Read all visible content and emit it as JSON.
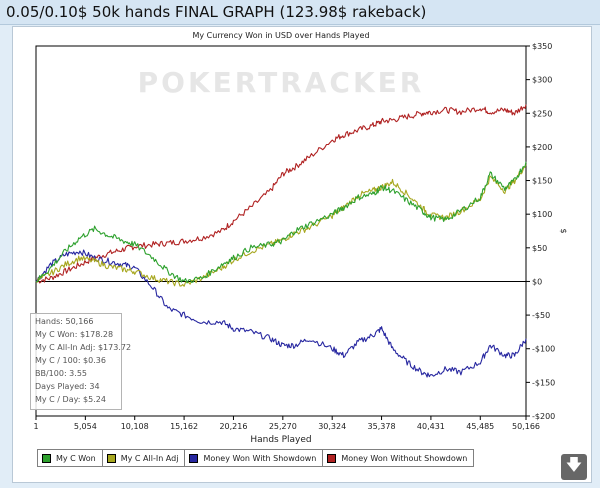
{
  "header": {
    "title": "0.05/0.10$  50k hands FINAL GRAPH (123.98$ rakeback)"
  },
  "watermark": "POKERTRACKER",
  "stats": [
    "Hands: 50,166",
    "My C Won: $178.28",
    "My C All-In Adj: $173.72",
    "My C / 100: $0.36",
    "BB/100: 3.55",
    "Days Played: 34",
    "My C / Day: $5.24"
  ],
  "download_icon": "download-arrow-icon",
  "chart_data": {
    "type": "line",
    "title": "My Currency Won in USD over Hands Played",
    "xlabel": "Hands Played",
    "ylabel": "$",
    "xlim": [
      1,
      50166
    ],
    "ylim": [
      -200,
      350
    ],
    "x_ticks": [
      1,
      5054,
      10108,
      15162,
      20216,
      25270,
      30324,
      35378,
      40431,
      45485,
      50166
    ],
    "x_tick_labels": [
      "1",
      "5,054",
      "10,108",
      "15,162",
      "20,216",
      "25,270",
      "30,324",
      "35,378",
      "40,431",
      "45,485",
      "50,166"
    ],
    "y_ticks": [
      350,
      300,
      250,
      200,
      150,
      100,
      50,
      0,
      -50,
      -100,
      -150,
      -200
    ],
    "y_tick_labels": [
      "$350",
      "$300",
      "$250",
      "$200",
      "$150",
      "$100",
      "$50",
      "$0",
      "-$50",
      "-$100",
      "-$150",
      "-$200"
    ],
    "grid": false,
    "legend_position": "bottom",
    "series": [
      {
        "name": "My C Won",
        "color": "#2ea12e",
        "x": [
          1,
          1500,
          3000,
          4500,
          6000,
          7500,
          9000,
          10108,
          12000,
          13500,
          15162,
          17000,
          19000,
          20216,
          22000,
          24000,
          25270,
          26500,
          28000,
          30324,
          31500,
          33000,
          34500,
          35378,
          36500,
          38000,
          39500,
          40431,
          42000,
          43500,
          45485,
          46500,
          48000,
          49000,
          50166
        ],
        "y": [
          0,
          20,
          45,
          65,
          78,
          68,
          60,
          55,
          35,
          15,
          0,
          5,
          25,
          35,
          50,
          55,
          60,
          75,
          85,
          100,
          110,
          125,
          130,
          140,
          135,
          120,
          105,
          95,
          92,
          105,
          125,
          160,
          138,
          150,
          178
        ]
      },
      {
        "name": "My C All-In Adj",
        "color": "#a7a71f",
        "x": [
          1,
          1500,
          3000,
          4500,
          6000,
          7500,
          9000,
          10108,
          12000,
          13500,
          15162,
          17000,
          19000,
          20216,
          22000,
          24000,
          25270,
          26500,
          28000,
          30324,
          31500,
          33000,
          34500,
          35378,
          36500,
          38000,
          39500,
          40431,
          42000,
          43500,
          45485,
          46500,
          48000,
          49000,
          50166
        ],
        "y": [
          0,
          12,
          25,
          35,
          30,
          22,
          18,
          15,
          5,
          0,
          -5,
          5,
          20,
          32,
          45,
          55,
          62,
          72,
          80,
          98,
          110,
          128,
          135,
          140,
          148,
          130,
          110,
          98,
          95,
          105,
          122,
          155,
          135,
          150,
          174
        ]
      },
      {
        "name": "Money Won With Showdown",
        "color": "#2727a0",
        "x": [
          1,
          1500,
          3000,
          4500,
          6000,
          7500,
          9000,
          10108,
          12000,
          13500,
          15162,
          17000,
          19000,
          20216,
          22000,
          24000,
          25270,
          26500,
          28000,
          30324,
          31500,
          33000,
          34500,
          35378,
          36500,
          38000,
          39500,
          40431,
          42000,
          43500,
          45485,
          46500,
          48000,
          49000,
          50166
        ],
        "y": [
          0,
          25,
          40,
          45,
          35,
          30,
          25,
          20,
          -10,
          -40,
          -50,
          -60,
          -60,
          -70,
          -75,
          -85,
          -95,
          -95,
          -85,
          -100,
          -110,
          -90,
          -80,
          -70,
          -100,
          -120,
          -135,
          -140,
          -130,
          -135,
          -120,
          -95,
          -110,
          -110,
          -85
        ]
      },
      {
        "name": "Money Won Without Showdown",
        "color": "#b02222",
        "x": [
          1,
          1500,
          3000,
          4500,
          6000,
          7500,
          9000,
          10108,
          12000,
          13500,
          15162,
          17000,
          19000,
          20216,
          22000,
          24000,
          25270,
          26500,
          28000,
          30324,
          31500,
          33000,
          34500,
          35378,
          36500,
          38000,
          39500,
          40431,
          42000,
          43500,
          45485,
          46500,
          48000,
          49000,
          50166
        ],
        "y": [
          0,
          5,
          15,
          25,
          35,
          42,
          48,
          52,
          55,
          57,
          60,
          65,
          75,
          90,
          110,
          135,
          160,
          170,
          185,
          210,
          218,
          225,
          232,
          238,
          240,
          245,
          250,
          252,
          255,
          252,
          258,
          252,
          255,
          250,
          263
        ]
      }
    ]
  }
}
